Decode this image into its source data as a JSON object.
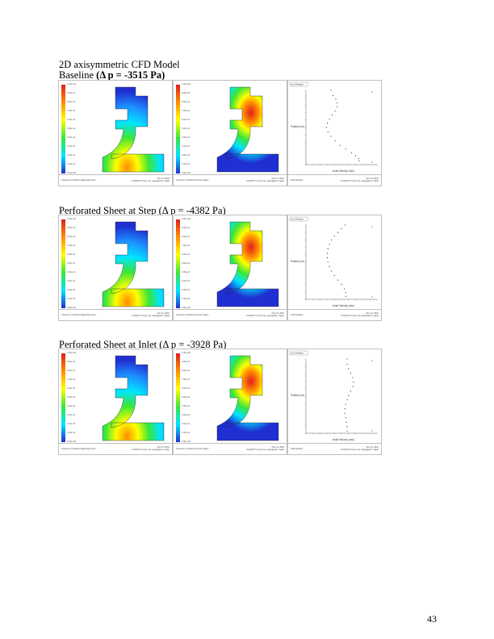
{
  "sections": [
    {
      "title_prefix": "Baseline ",
      "title_bold": "(Δ p = -3515 Pa)",
      "profile": [
        [
          0.35,
          1
        ],
        [
          0.38,
          0.93
        ],
        [
          0.42,
          0.88
        ],
        [
          0.44,
          0.83
        ],
        [
          0.44,
          0.78
        ],
        [
          0.41,
          0.72
        ],
        [
          0.37,
          0.67
        ],
        [
          0.33,
          0.61
        ],
        [
          0.3,
          0.56
        ],
        [
          0.29,
          0.5
        ],
        [
          0.31,
          0.44
        ],
        [
          0.35,
          0.38
        ],
        [
          0.41,
          0.32
        ],
        [
          0.48,
          0.26
        ],
        [
          0.56,
          0.21
        ],
        [
          0.64,
          0.16
        ],
        [
          0.7,
          0.12
        ],
        [
          0.74,
          0.08
        ],
        [
          0.75,
          0.05
        ]
      ]
    },
    {
      "title_prefix": "Perforated Sheet at Step (Δ p = -4382 Pa)",
      "title_bold": "",
      "profile": [
        [
          0.55,
          1
        ],
        [
          0.5,
          0.95
        ],
        [
          0.45,
          0.9
        ],
        [
          0.4,
          0.85
        ],
        [
          0.36,
          0.8
        ],
        [
          0.33,
          0.74
        ],
        [
          0.31,
          0.68
        ],
        [
          0.3,
          0.62
        ],
        [
          0.3,
          0.56
        ],
        [
          0.31,
          0.5
        ],
        [
          0.33,
          0.44
        ],
        [
          0.36,
          0.38
        ],
        [
          0.4,
          0.32
        ],
        [
          0.45,
          0.26
        ],
        [
          0.5,
          0.2
        ],
        [
          0.54,
          0.14
        ],
        [
          0.56,
          0.09
        ],
        [
          0.56,
          0.04
        ]
      ]
    },
    {
      "title_prefix": "Perforated Sheet at Inlet (Δ p = -3928 Pa)",
      "title_bold": "",
      "profile": [
        [
          0.58,
          1
        ],
        [
          0.58,
          0.93
        ],
        [
          0.6,
          0.87
        ],
        [
          0.63,
          0.81
        ],
        [
          0.66,
          0.75
        ],
        [
          0.67,
          0.69
        ],
        [
          0.66,
          0.63
        ],
        [
          0.63,
          0.57
        ],
        [
          0.6,
          0.51
        ],
        [
          0.58,
          0.45
        ],
        [
          0.56,
          0.39
        ],
        [
          0.55,
          0.33
        ],
        [
          0.55,
          0.27
        ],
        [
          0.56,
          0.21
        ],
        [
          0.57,
          0.15
        ],
        [
          0.58,
          0.09
        ],
        [
          0.58,
          0.03
        ]
      ]
    }
  ],
  "header_line": "2D axisymmetric CFD Model",
  "contour1_footer": "Contours of Velocity Magnitude (m/s)",
  "contour2_footer": "Contours of Stream Function (kg/s)",
  "plot_footer": "Axial Velocity",
  "fluent_info": "FLUENT 6.0 (axi, dp, segregated, rngke)",
  "date_info": "Nov 14, 2001",
  "legend_label": "Line.Position",
  "ylabel": "Position (m)",
  "xlabel": "Axial Velocity (m/s)",
  "colorbar_ticks": [
    "1.00e+00",
    "9.00e-01",
    "8.00e-01",
    "7.00e-01",
    "6.00e-01",
    "5.00e-01",
    "4.00e-01",
    "3.00e-01",
    "2.00e-01",
    "1.00e-01",
    "0.00e+00"
  ],
  "page_number": "43",
  "colors": {
    "hot": "#e01e1e",
    "cold": "#1f2fd1"
  }
}
